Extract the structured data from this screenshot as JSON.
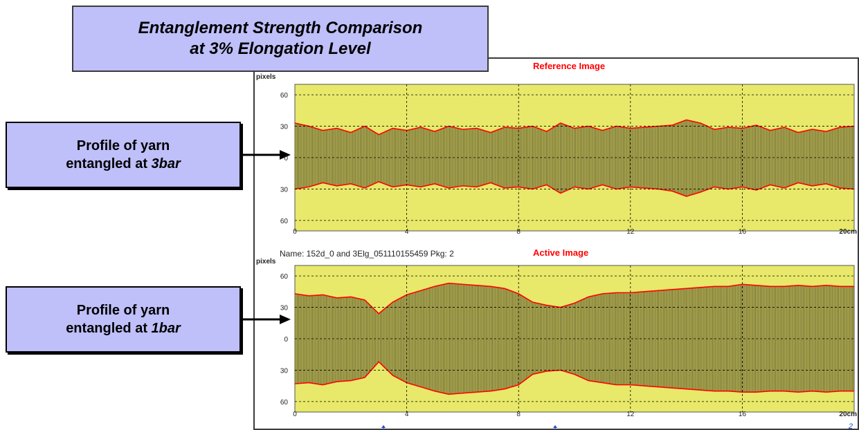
{
  "slide_title": {
    "line1": "Entanglement Strength Comparison",
    "line2": "at 3% Elongation Level"
  },
  "callouts": [
    {
      "line1": "Profile of yarn",
      "line2_prefix": "entangled at ",
      "line2_emph": "3bar"
    },
    {
      "line1": "Profile of yarn",
      "line2_prefix": "entangled at ",
      "line2_emph": "1bar"
    }
  ],
  "panels": [
    {
      "title": "Reference Image"
    },
    {
      "title": "Active Image",
      "info": "Name: 152d_0 and 3Elg_051110155459  Pkg: 2"
    }
  ],
  "footer_marks": {
    "page_number": "2"
  },
  "colors": {
    "plot_bg": "#e8e86a",
    "profile_fill": "#6f6a35",
    "profile_edge": "#ff0000",
    "grid": "#000000",
    "callout_bg": "#bfbffa",
    "panel_title": "#ff0000"
  },
  "chart_data": [
    {
      "type": "area",
      "title": "Reference Image",
      "ylabel": "pixels",
      "xlabel": "",
      "xlim": [
        0,
        20
      ],
      "ylim": [
        -70,
        70
      ],
      "x_ticks": [
        0,
        4,
        8,
        12,
        16,
        20
      ],
      "x_tick_labels": [
        "0",
        "4",
        "8",
        "12",
        "16",
        "20cm"
      ],
      "y_ticks": [
        60,
        30,
        0,
        -30,
        -60
      ],
      "y_tick_labels": [
        "60",
        "30",
        "0",
        "30",
        "60"
      ],
      "grid": true,
      "x": [
        0,
        0.5,
        1,
        1.5,
        2,
        2.5,
        3,
        3.5,
        4,
        4.5,
        5,
        5.5,
        6,
        6.5,
        7,
        7.5,
        8,
        8.5,
        9,
        9.5,
        10,
        10.5,
        11,
        11.5,
        12,
        12.5,
        13,
        13.5,
        14,
        14.5,
        15,
        15.5,
        16,
        16.5,
        17,
        17.5,
        18,
        18.5,
        19,
        19.5,
        20
      ],
      "series": [
        {
          "name": "upper",
          "values": [
            33,
            30,
            26,
            28,
            24,
            30,
            22,
            28,
            26,
            29,
            25,
            30,
            27,
            28,
            24,
            29,
            28,
            30,
            25,
            33,
            28,
            30,
            26,
            30,
            28,
            29,
            30,
            31,
            36,
            33,
            27,
            29,
            28,
            31,
            26,
            29,
            24,
            27,
            25,
            29,
            30
          ]
        },
        {
          "name": "lower",
          "values": [
            -30,
            -28,
            -24,
            -27,
            -25,
            -29,
            -23,
            -28,
            -26,
            -28,
            -25,
            -29,
            -27,
            -28,
            -24,
            -29,
            -28,
            -30,
            -26,
            -34,
            -28,
            -30,
            -26,
            -30,
            -28,
            -29,
            -30,
            -32,
            -37,
            -33,
            -28,
            -30,
            -28,
            -31,
            -26,
            -29,
            -24,
            -27,
            -25,
            -29,
            -30
          ]
        }
      ]
    },
    {
      "type": "area",
      "title": "Active Image",
      "ylabel": "pixels",
      "xlabel": "",
      "xlim": [
        0,
        20
      ],
      "ylim": [
        -70,
        70
      ],
      "x_ticks": [
        0,
        4,
        8,
        12,
        16,
        20
      ],
      "x_tick_labels": [
        "0",
        "4",
        "8",
        "12",
        "16",
        "20cm"
      ],
      "y_ticks": [
        60,
        30,
        0,
        -30,
        -60
      ],
      "y_tick_labels": [
        "60",
        "30",
        "0",
        "30",
        "60"
      ],
      "grid": true,
      "x": [
        0,
        0.5,
        1,
        1.5,
        2,
        2.5,
        3,
        3.5,
        4,
        4.5,
        5,
        5.5,
        6,
        6.5,
        7,
        7.5,
        8,
        8.5,
        9,
        9.5,
        10,
        10.5,
        11,
        11.5,
        12,
        12.5,
        13,
        13.5,
        14,
        14.5,
        15,
        15.5,
        16,
        16.5,
        17,
        17.5,
        18,
        18.5,
        19,
        19.5,
        20
      ],
      "series": [
        {
          "name": "upper",
          "values": [
            43,
            41,
            42,
            39,
            40,
            37,
            24,
            35,
            42,
            46,
            50,
            53,
            52,
            51,
            50,
            48,
            43,
            35,
            32,
            30,
            34,
            40,
            43,
            44,
            44,
            45,
            46,
            47,
            48,
            49,
            50,
            50,
            52,
            51,
            50,
            50,
            51,
            50,
            51,
            50,
            50
          ]
        },
        {
          "name": "lower",
          "values": [
            -43,
            -42,
            -44,
            -41,
            -40,
            -37,
            -22,
            -35,
            -42,
            -46,
            -50,
            -53,
            -52,
            -51,
            -50,
            -48,
            -44,
            -34,
            -31,
            -30,
            -34,
            -40,
            -42,
            -44,
            -44,
            -45,
            -46,
            -47,
            -48,
            -49,
            -50,
            -50,
            -51,
            -51,
            -50,
            -50,
            -51,
            -50,
            -51,
            -50,
            -50
          ]
        }
      ]
    }
  ]
}
